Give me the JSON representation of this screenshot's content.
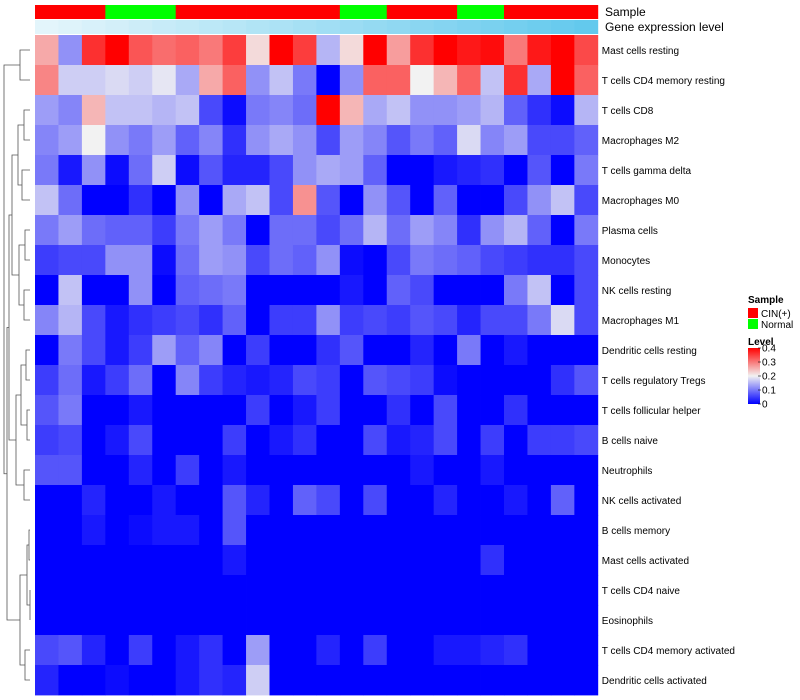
{
  "chart_data": {
    "type": "heatmap",
    "title": "",
    "annotation_tracks": [
      {
        "label": "Sample",
        "values": [
          "CIN(+)",
          "CIN(+)",
          "CIN(+)",
          "Normal",
          "Normal",
          "Normal",
          "CIN(+)",
          "CIN(+)",
          "CIN(+)",
          "CIN(+)",
          "CIN(+)",
          "CIN(+)",
          "CIN(+)",
          "Normal",
          "Normal",
          "CIN(+)",
          "CIN(+)",
          "CIN(+)",
          "Normal",
          "Normal",
          "CIN(+)",
          "CIN(+)",
          "CIN(+)",
          "CIN(+)"
        ]
      },
      {
        "label": "Gene expression level",
        "values": [
          0.02,
          0.06,
          0.1,
          0.14,
          0.18,
          0.22,
          0.26,
          0.3,
          0.34,
          0.38,
          0.42,
          0.46,
          0.5,
          0.54,
          0.58,
          0.62,
          0.66,
          0.7,
          0.74,
          0.78,
          0.82,
          0.86,
          0.9,
          0.94
        ]
      }
    ],
    "rows": [
      "Mast cells resting",
      "T cells CD4 memory resting",
      "T cells CD8",
      "Macrophages M2",
      "T cells gamma delta",
      "Macrophages M0",
      "Plasma cells",
      "Monocytes",
      "NK cells resting",
      "Macrophages M1",
      "Dendritic cells resting",
      "T cells regulatory  Tregs",
      "T cells follicular helper",
      "B cells naive",
      "Neutrophils",
      "NK cells activated",
      "B cells memory",
      "Mast cells activated",
      "T cells CD4 naive",
      "Eosinophils",
      "T cells CD4 memory activated",
      "Dendritic cells activated"
    ],
    "values": [
      [
        0.26,
        0.12,
        0.36,
        0.4,
        0.33,
        0.31,
        0.32,
        0.3,
        0.35,
        0.22,
        0.4,
        0.35,
        0.15,
        0.22,
        0.4,
        0.27,
        0.36,
        0.4,
        0.38,
        0.39,
        0.3,
        0.38,
        0.4,
        0.34
      ],
      [
        0.29,
        0.17,
        0.17,
        0.18,
        0.17,
        0.19,
        0.14,
        0.26,
        0.32,
        0.12,
        0.16,
        0.1,
        0.0,
        0.12,
        0.32,
        0.32,
        0.2,
        0.25,
        0.32,
        0.16,
        0.36,
        0.14,
        0.4,
        0.32
      ],
      [
        0.13,
        0.11,
        0.25,
        0.16,
        0.16,
        0.15,
        0.16,
        0.06,
        0.01,
        0.1,
        0.11,
        0.09,
        0.4,
        0.25,
        0.14,
        0.16,
        0.12,
        0.12,
        0.13,
        0.15,
        0.08,
        0.04,
        0.01,
        0.15
      ],
      [
        0.11,
        0.13,
        0.2,
        0.12,
        0.1,
        0.13,
        0.08,
        0.11,
        0.04,
        0.12,
        0.14,
        0.12,
        0.06,
        0.13,
        0.11,
        0.07,
        0.1,
        0.08,
        0.18,
        0.11,
        0.13,
        0.06,
        0.06,
        0.08
      ],
      [
        0.1,
        0.02,
        0.12,
        0.01,
        0.09,
        0.17,
        0.01,
        0.07,
        0.03,
        0.03,
        0.06,
        0.12,
        0.14,
        0.13,
        0.08,
        0.0,
        0.0,
        0.02,
        0.03,
        0.04,
        0.0,
        0.07,
        0.0,
        0.1
      ],
      [
        0.16,
        0.09,
        0.0,
        0.0,
        0.04,
        0.0,
        0.12,
        0.0,
        0.14,
        0.16,
        0.06,
        0.28,
        0.07,
        0.0,
        0.12,
        0.07,
        0.0,
        0.08,
        0.0,
        0.0,
        0.06,
        0.12,
        0.16,
        0.06
      ],
      [
        0.1,
        0.13,
        0.09,
        0.08,
        0.08,
        0.05,
        0.1,
        0.13,
        0.1,
        0.0,
        0.09,
        0.09,
        0.06,
        0.09,
        0.15,
        0.09,
        0.13,
        0.11,
        0.04,
        0.12,
        0.15,
        0.08,
        0.0,
        0.1
      ],
      [
        0.05,
        0.06,
        0.06,
        0.12,
        0.12,
        0.01,
        0.09,
        0.13,
        0.12,
        0.06,
        0.09,
        0.08,
        0.12,
        0.01,
        0.0,
        0.06,
        0.1,
        0.09,
        0.08,
        0.06,
        0.05,
        0.04,
        0.04,
        0.06
      ],
      [
        0.0,
        0.16,
        0.0,
        0.0,
        0.12,
        0.0,
        0.08,
        0.09,
        0.1,
        0.0,
        0.0,
        0.0,
        0.0,
        0.02,
        0.0,
        0.08,
        0.06,
        0.0,
        0.0,
        0.0,
        0.1,
        0.16,
        0.0,
        0.06
      ],
      [
        0.11,
        0.15,
        0.06,
        0.02,
        0.04,
        0.05,
        0.06,
        0.04,
        0.08,
        0.0,
        0.05,
        0.05,
        0.12,
        0.05,
        0.06,
        0.05,
        0.07,
        0.06,
        0.03,
        0.06,
        0.06,
        0.1,
        0.18,
        0.06
      ],
      [
        0.0,
        0.1,
        0.06,
        0.02,
        0.05,
        0.13,
        0.08,
        0.11,
        0.0,
        0.05,
        0.0,
        0.0,
        0.04,
        0.07,
        0.0,
        0.0,
        0.03,
        0.0,
        0.1,
        0.0,
        0.02,
        0.0,
        0.0,
        0.0
      ],
      [
        0.05,
        0.09,
        0.02,
        0.05,
        0.09,
        0.0,
        0.11,
        0.05,
        0.03,
        0.02,
        0.03,
        0.06,
        0.05,
        0.0,
        0.07,
        0.06,
        0.05,
        0.01,
        0.0,
        0.0,
        0.0,
        0.0,
        0.04,
        0.07
      ],
      [
        0.07,
        0.1,
        0.0,
        0.0,
        0.02,
        0.0,
        0.0,
        0.0,
        0.0,
        0.05,
        0.0,
        0.02,
        0.05,
        0.0,
        0.0,
        0.04,
        0.0,
        0.06,
        0.0,
        0.0,
        0.04,
        0.0,
        0.0,
        0.0
      ],
      [
        0.05,
        0.06,
        0.0,
        0.02,
        0.06,
        0.0,
        0.0,
        0.0,
        0.05,
        0.0,
        0.02,
        0.04,
        0.0,
        0.0,
        0.06,
        0.02,
        0.03,
        0.06,
        0.0,
        0.05,
        0.0,
        0.05,
        0.05,
        0.06
      ],
      [
        0.07,
        0.07,
        0.0,
        0.0,
        0.03,
        0.0,
        0.05,
        0.0,
        0.02,
        0.0,
        0.0,
        0.0,
        0.0,
        0.0,
        0.0,
        0.0,
        0.02,
        0.0,
        0.0,
        0.02,
        0.0,
        0.0,
        0.0,
        0.0
      ],
      [
        0.0,
        0.0,
        0.03,
        0.0,
        0.0,
        0.02,
        0.0,
        0.0,
        0.07,
        0.03,
        0.0,
        0.08,
        0.06,
        0.0,
        0.06,
        0.0,
        0.0,
        0.03,
        0.0,
        0.0,
        0.02,
        0.0,
        0.08,
        0.0
      ],
      [
        0.0,
        0.0,
        0.02,
        0.0,
        0.01,
        0.02,
        0.02,
        0.0,
        0.07,
        0.0,
        0.0,
        0.0,
        0.0,
        0.0,
        0.0,
        0.0,
        0.0,
        0.0,
        0.0,
        0.0,
        0.0,
        0.0,
        0.0,
        0.0
      ],
      [
        0.0,
        0.0,
        0.0,
        0.0,
        0.0,
        0.0,
        0.0,
        0.0,
        0.02,
        0.0,
        0.0,
        0.0,
        0.0,
        0.0,
        0.0,
        0.0,
        0.0,
        0.0,
        0.0,
        0.04,
        0.0,
        0.0,
        0.0,
        0.0
      ],
      [
        0.0,
        0.0,
        0.0,
        0.0,
        0.0,
        0.0,
        0.0,
        0.0,
        0.0,
        0.0,
        0.0,
        0.0,
        0.0,
        0.0,
        0.0,
        0.0,
        0.0,
        0.0,
        0.0,
        0.0,
        0.0,
        0.0,
        0.0,
        0.0
      ],
      [
        0.0,
        0.0,
        0.0,
        0.0,
        0.0,
        0.0,
        0.0,
        0.0,
        0.0,
        0.0,
        0.0,
        0.0,
        0.0,
        0.0,
        0.0,
        0.0,
        0.0,
        0.0,
        0.0,
        0.0,
        0.0,
        0.0,
        0.0,
        0.0
      ],
      [
        0.06,
        0.07,
        0.03,
        0.0,
        0.05,
        0.0,
        0.02,
        0.04,
        0.0,
        0.13,
        0.0,
        0.0,
        0.03,
        0.0,
        0.05,
        0.0,
        0.0,
        0.02,
        0.02,
        0.03,
        0.04,
        0.0,
        0.0,
        0.0
      ],
      [
        0.03,
        0.0,
        0.0,
        0.01,
        0.0,
        0.0,
        0.02,
        0.04,
        0.03,
        0.17,
        0.0,
        0.0,
        0.0,
        0.0,
        0.0,
        0.0,
        0.0,
        0.0,
        0.0,
        0.0,
        0.0,
        0.0,
        0.0,
        0.0
      ]
    ],
    "color_scale": {
      "domain": [
        0,
        0.2,
        0.4
      ],
      "colors": [
        "#0000ff",
        "#f2f2f2",
        "#ff0000"
      ]
    },
    "legend": {
      "placement": "right",
      "sample_title": "Sample",
      "sample_entries": [
        {
          "label": "CIN(+)",
          "color": "#ff0000"
        },
        {
          "label": "Normal",
          "color": "#00ff00"
        }
      ],
      "level_title": "Level",
      "level_ticks": [
        "0.4",
        "0.3",
        "0.2",
        "0.1",
        "0"
      ],
      "level_tick_values": [
        0.4,
        0.3,
        0.2,
        0.1,
        0
      ]
    },
    "gene_expression_colors": [
      "#e6f6fb",
      "#5bc6ec"
    ],
    "dendrogram": "row clustering (left)"
  }
}
